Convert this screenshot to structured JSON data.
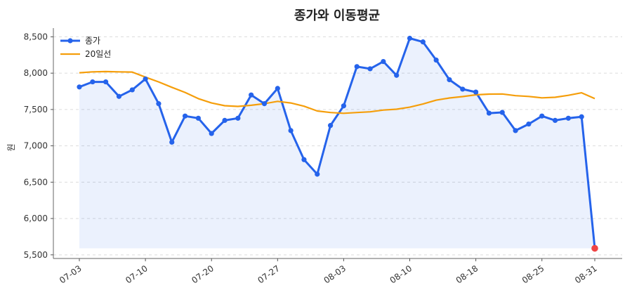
{
  "chart_data": {
    "type": "line",
    "title": "종가와 이동평균",
    "xlabel": "",
    "ylabel": "원",
    "ylim": [
      5450,
      8620
    ],
    "yticks": [
      5500,
      6000,
      6500,
      7000,
      7500,
      8000,
      8500
    ],
    "ytick_labels": [
      "5,500",
      "6,000",
      "6,500",
      "7,000",
      "7,500",
      "8,000",
      "8,500"
    ],
    "xtick_labels": [
      "07-03",
      "07-10",
      "07-20",
      "07-27",
      "08-03",
      "08-10",
      "08-18",
      "08-25",
      "08-31"
    ],
    "xtick_index": [
      0,
      5,
      10,
      15,
      20,
      25,
      30,
      35,
      39
    ],
    "grid": "horizontal dashed",
    "legend_position": "top-left",
    "series": [
      {
        "name": "종가",
        "color": "#2563eb",
        "marker": "circle",
        "fill": true,
        "values": [
          7810,
          7880,
          7880,
          7680,
          7770,
          7920,
          7580,
          7050,
          7410,
          7380,
          7170,
          7350,
          7380,
          7700,
          7580,
          7790,
          7210,
          6810,
          6610,
          7280,
          7550,
          8090,
          8060,
          8160,
          7970,
          8480,
          8430,
          8180,
          7910,
          7780,
          7740,
          7450,
          7460,
          7210,
          7300,
          7410,
          7350,
          7380,
          7400,
          5590
        ]
      },
      {
        "name": "20일선",
        "color": "#f59e0b",
        "marker": "none",
        "fill": false,
        "values": [
          8005,
          8018,
          8022,
          8018,
          8015,
          7945,
          7880,
          7805,
          7735,
          7650,
          7590,
          7552,
          7542,
          7558,
          7580,
          7612,
          7590,
          7545,
          7480,
          7458,
          7448,
          7458,
          7468,
          7492,
          7504,
          7532,
          7575,
          7628,
          7658,
          7678,
          7702,
          7712,
          7713,
          7690,
          7680,
          7660,
          7668,
          7695,
          7730,
          7650
        ]
      }
    ],
    "last_point_color": "#ef4444"
  }
}
